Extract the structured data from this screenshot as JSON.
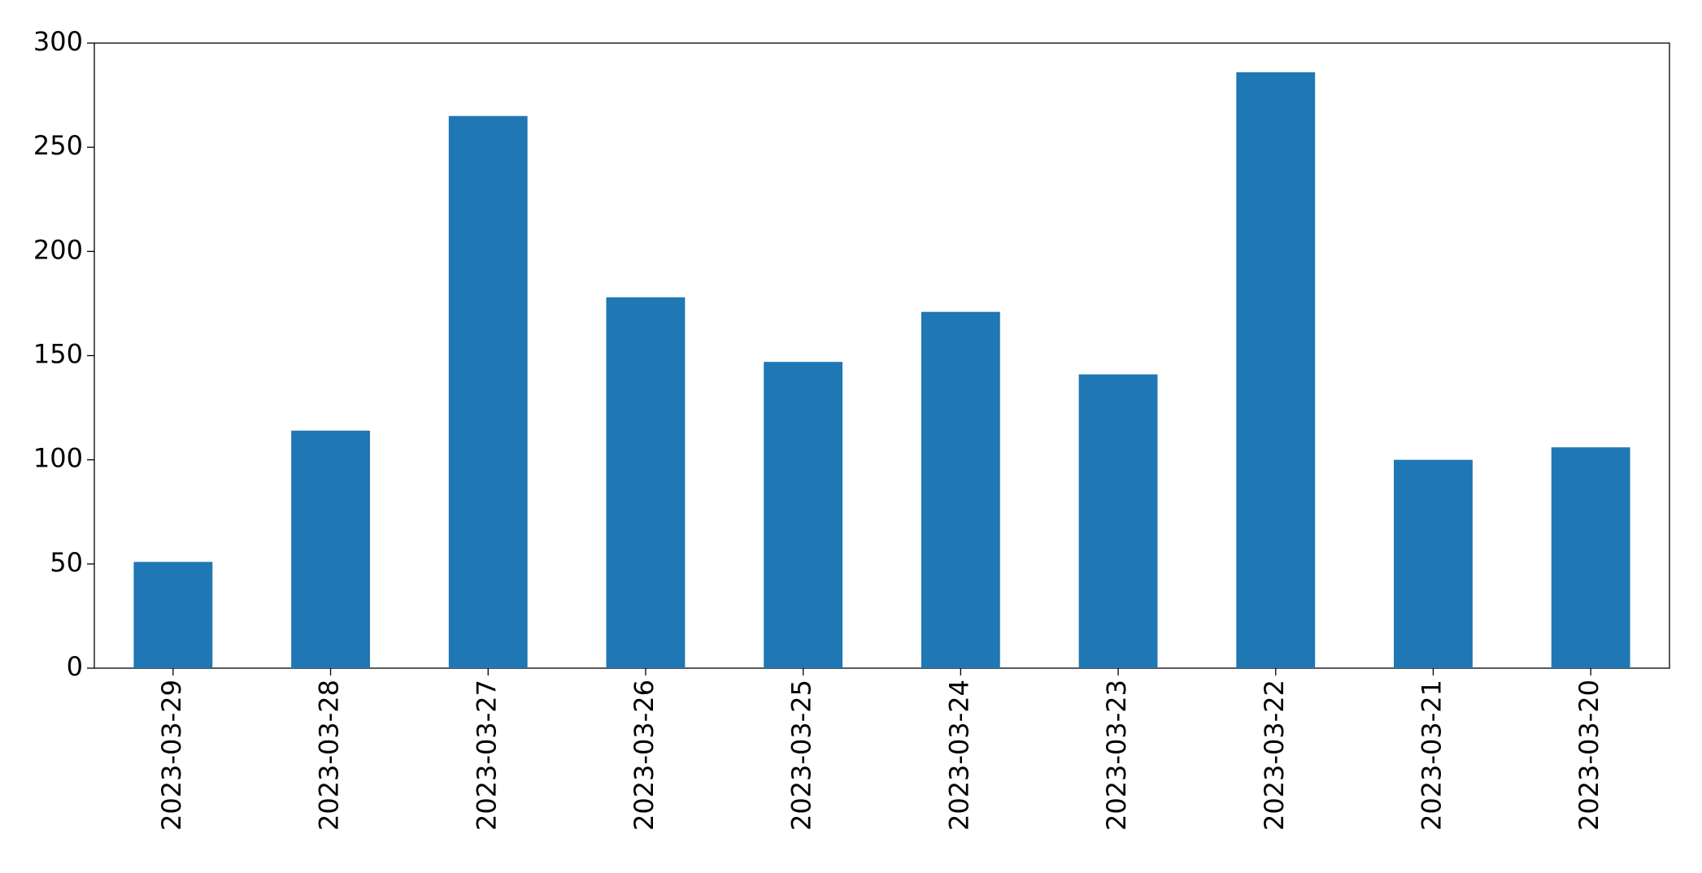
{
  "chart_data": {
    "type": "bar",
    "categories": [
      "2023-03-29",
      "2023-03-28",
      "2023-03-27",
      "2023-03-26",
      "2023-03-25",
      "2023-03-24",
      "2023-03-23",
      "2023-03-22",
      "2023-03-21",
      "2023-03-20"
    ],
    "values": [
      51,
      114,
      265,
      178,
      147,
      171,
      141,
      286,
      100,
      106
    ],
    "color": "#1f77b4",
    "ylim": [
      0,
      300
    ],
    "yticks": [
      0,
      50,
      100,
      150,
      200,
      250,
      300
    ],
    "grid": false
  }
}
